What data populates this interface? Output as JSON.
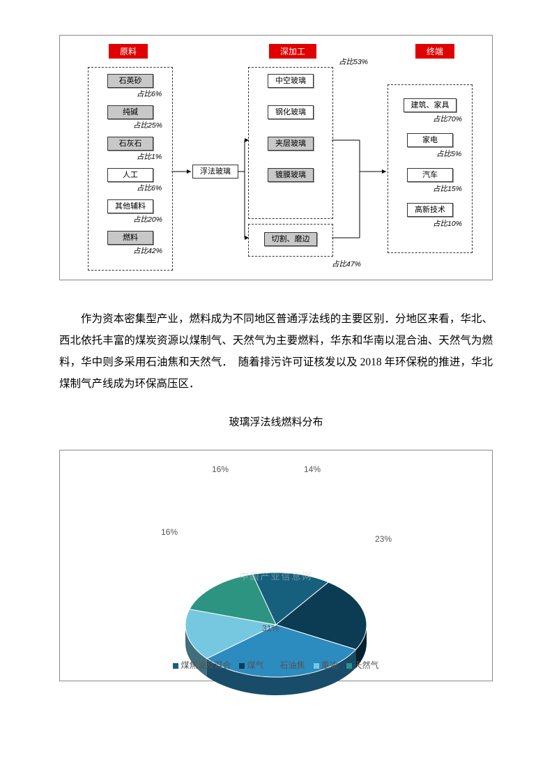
{
  "flow": {
    "headers": {
      "raw": "原料",
      "deep": "深加工",
      "end": "终端"
    },
    "ratio_top": "占比53%",
    "ratio_bottom": "占比47%",
    "center_node": "浮法玻璃",
    "raw_items": [
      {
        "label": "石英砂",
        "sub": "占比6%"
      },
      {
        "label": "纯碱",
        "sub": "占比25%"
      },
      {
        "label": "石灰石",
        "sub": "占比1%"
      },
      {
        "label": "人工",
        "sub": "占比6%",
        "white": true
      },
      {
        "label": "其他辅料",
        "sub": "占比20%",
        "white": true
      },
      {
        "label": "燃料",
        "sub": "占比42%"
      }
    ],
    "deep_items": [
      {
        "label": "中空玻璃",
        "white": true
      },
      {
        "label": "钢化玻璃",
        "white": true
      },
      {
        "label": "夹层玻璃"
      },
      {
        "label": "镀膜玻璃"
      },
      {
        "label": "切割、磨边"
      }
    ],
    "end_items": [
      {
        "label": "建筑、家具",
        "sub": "占比70%",
        "white": true
      },
      {
        "label": "家电",
        "sub": "占比5%",
        "white": true
      },
      {
        "label": "汽车",
        "sub": "占比15%",
        "white": true
      },
      {
        "label": "高新技术",
        "sub": "占比10%",
        "white": true
      }
    ]
  },
  "paragraph": "作为资本密集型产业，燃料成为不同地区普通浮法线的主要区别．分地区来看，华北、西北依托丰富的煤炭资源以煤制气、天然气为主要燃料，华东和华南以混合油、天然气为燃料，华中则多采用石油焦和天然气．　随着排污许可证核发以及 2018 年环保税的推进，华北煤制气产线成为环保高压区．",
  "pie": {
    "title": "玻璃浮法线燃料分布",
    "watermark": "中国产业信息网",
    "slices": [
      {
        "name": "煤焦油及混合",
        "pct": 14,
        "color": "#16607e"
      },
      {
        "name": "煤气",
        "pct": 23,
        "color": "#0b3c54"
      },
      {
        "name": "石油焦",
        "pct": 31,
        "color": "#2c8bbf"
      },
      {
        "name": "重油",
        "pct": 16,
        "color": "#76c8e0"
      },
      {
        "name": "天然气",
        "pct": 16,
        "color": "#2d9482"
      }
    ]
  }
}
